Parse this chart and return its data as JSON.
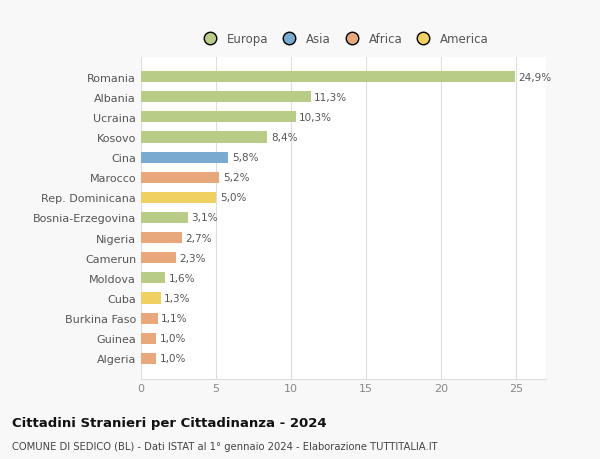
{
  "categories": [
    "Algeria",
    "Guinea",
    "Burkina Faso",
    "Cuba",
    "Moldova",
    "Camerun",
    "Nigeria",
    "Bosnia-Erzegovina",
    "Rep. Dominicana",
    "Marocco",
    "Cina",
    "Kosovo",
    "Ucraina",
    "Albania",
    "Romania"
  ],
  "values": [
    1.0,
    1.0,
    1.1,
    1.3,
    1.6,
    2.3,
    2.7,
    3.1,
    5.0,
    5.2,
    5.8,
    8.4,
    10.3,
    11.3,
    24.9
  ],
  "labels": [
    "1,0%",
    "1,0%",
    "1,1%",
    "1,3%",
    "1,6%",
    "2,3%",
    "2,7%",
    "3,1%",
    "5,0%",
    "5,2%",
    "5,8%",
    "8,4%",
    "10,3%",
    "11,3%",
    "24,9%"
  ],
  "colors": [
    "#e8a87c",
    "#e8a87c",
    "#e8a87c",
    "#f0d060",
    "#b8cc88",
    "#e8a87c",
    "#e8a87c",
    "#b8cc88",
    "#f0d060",
    "#e8a87c",
    "#7aaad0",
    "#b8cc88",
    "#b8cc88",
    "#b8cc88",
    "#b8cc88"
  ],
  "legend_labels": [
    "Europa",
    "Asia",
    "Africa",
    "America"
  ],
  "legend_colors": [
    "#b8cc88",
    "#7aaad0",
    "#e8a87c",
    "#f0d060"
  ],
  "title": "Cittadini Stranieri per Cittadinanza - 2024",
  "subtitle": "COMUNE DI SEDICO (BL) - Dati ISTAT al 1° gennaio 2024 - Elaborazione TUTTITALIA.IT",
  "xlim": [
    0,
    27
  ],
  "xticks": [
    0,
    5,
    10,
    15,
    20,
    25
  ],
  "background_color": "#f8f8f8",
  "bar_background": "#ffffff",
  "grid_color": "#dddddd"
}
